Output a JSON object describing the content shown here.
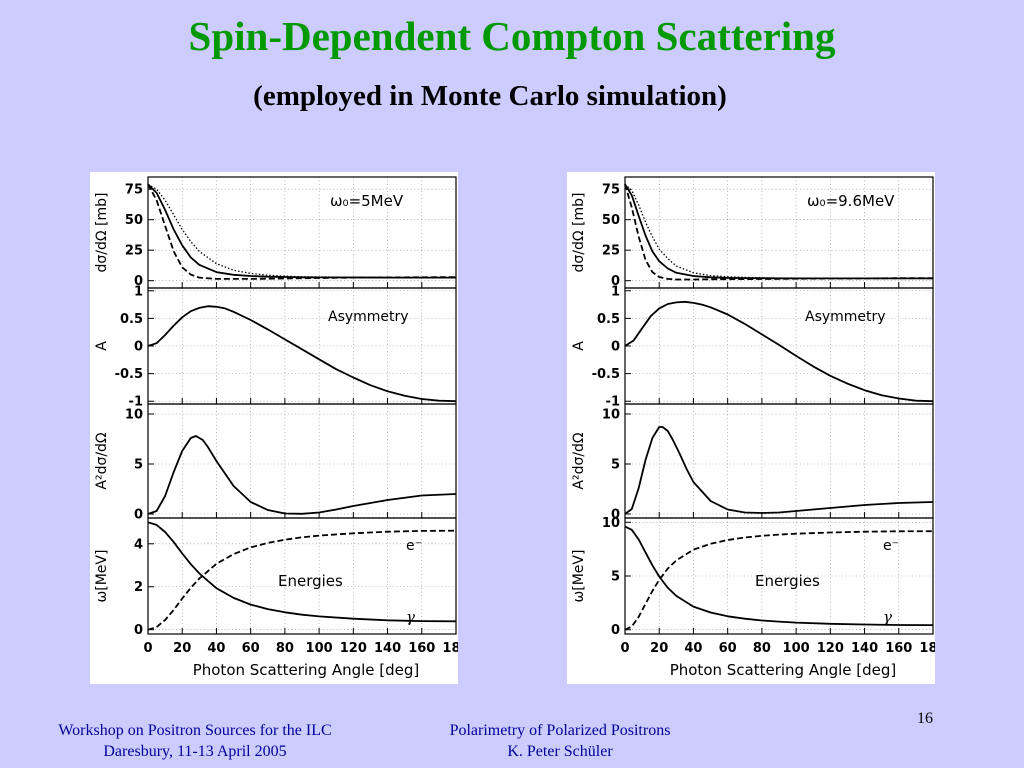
{
  "slide": {
    "title": "Spin-Dependent Compton Scattering",
    "subtitle": "(employed in Monte Carlo simulation)",
    "page_number": "16",
    "footer_left": [
      "Workshop on Positron Sources for the ILC",
      "Daresbury, 11-13 April 2005"
    ],
    "footer_center": [
      "Polarimetry of Polarized Positrons",
      "K. Peter Schüler"
    ]
  },
  "chart_data": [
    {
      "type": "line",
      "energy_label": "ω₀=5MeV",
      "xlabel": "Photon Scattering Angle [deg]",
      "xlim": [
        0,
        180
      ],
      "xticks": [
        "0",
        "20",
        "40",
        "60",
        "80",
        "100",
        "120",
        "140",
        "160",
        "180"
      ],
      "subplots": [
        {
          "ylabel": "dσ/dΩ [mb]",
          "ylim": [
            -6,
            85
          ],
          "yticks": [
            0,
            25,
            50,
            75
          ],
          "annotation": "",
          "series": [
            {
              "style": "dotted",
              "x": [
                0,
                5,
                10,
                15,
                20,
                25,
                30,
                40,
                50,
                60,
                70,
                80,
                90,
                100,
                120,
                140,
                160,
                180
              ],
              "values": [
                79,
                75,
                66,
                54,
                42,
                32,
                24,
                14,
                8.5,
                6,
                4.5,
                3.7,
                3.2,
                3,
                2.8,
                2.7,
                2.6,
                2.6
              ]
            },
            {
              "style": "solid",
              "x": [
                0,
                5,
                10,
                15,
                20,
                25,
                30,
                40,
                50,
                60,
                70,
                80,
                90,
                100,
                120,
                140,
                160,
                180
              ],
              "values": [
                79,
                72,
                58,
                42,
                29,
                19,
                13,
                7,
                4.8,
                3.8,
                3.3,
                3,
                2.8,
                2.7,
                2.6,
                2.5,
                2.5,
                2.5
              ]
            },
            {
              "style": "dashed",
              "x": [
                0,
                5,
                10,
                15,
                20,
                25,
                30,
                40,
                50,
                60,
                70,
                80,
                90,
                100,
                120,
                140,
                160,
                180
              ],
              "values": [
                79,
                66,
                45,
                24,
                11,
                5,
                2.5,
                1.5,
                1.5,
                1.5,
                1.6,
                1.8,
                2,
                2.2,
                2.5,
                2.7,
                2.8,
                2.9
              ]
            }
          ]
        },
        {
          "ylabel": "A",
          "ylim": [
            -1.05,
            1.05
          ],
          "yticks": [
            -1,
            -0.5,
            0,
            0.5,
            1
          ],
          "annotation": "Asymmetry",
          "series": [
            {
              "style": "solid",
              "x": [
                0,
                5,
                10,
                15,
                20,
                25,
                30,
                35,
                40,
                45,
                50,
                60,
                70,
                80,
                90,
                100,
                110,
                120,
                130,
                140,
                150,
                160,
                170,
                180
              ],
              "values": [
                0,
                0.05,
                0.2,
                0.37,
                0.52,
                0.63,
                0.69,
                0.72,
                0.71,
                0.68,
                0.62,
                0.47,
                0.3,
                0.12,
                -0.06,
                -0.24,
                -0.42,
                -0.57,
                -0.71,
                -0.82,
                -0.9,
                -0.96,
                -0.99,
                -1
              ]
            }
          ]
        },
        {
          "ylabel": "A²dσ/dΩ",
          "ylim": [
            -0.4,
            11
          ],
          "yticks": [
            0,
            5,
            10
          ],
          "annotation": "",
          "series": [
            {
              "style": "solid",
              "x": [
                0,
                5,
                10,
                15,
                20,
                25,
                28,
                32,
                35,
                40,
                50,
                60,
                70,
                80,
                90,
                100,
                110,
                120,
                140,
                160,
                180
              ],
              "values": [
                0,
                0.3,
                1.8,
                4.2,
                6.3,
                7.6,
                7.8,
                7.4,
                6.7,
                5.3,
                2.8,
                1.2,
                0.4,
                0.05,
                0.02,
                0.15,
                0.45,
                0.8,
                1.4,
                1.85,
                2
              ]
            }
          ]
        },
        {
          "ylabel": "ω[MeV]",
          "ylim": [
            -0.2,
            5.2
          ],
          "yticks": [
            0,
            2,
            4
          ],
          "annotation": "Energies",
          "electron_label": "e⁻",
          "photon_label": "γ",
          "series": [
            {
              "style": "solid",
              "x": [
                0,
                5,
                10,
                15,
                20,
                25,
                30,
                40,
                50,
                60,
                70,
                80,
                90,
                100,
                120,
                140,
                160,
                180
              ],
              "values": [
                5,
                4.88,
                4.55,
                4.08,
                3.55,
                3.05,
                2.62,
                1.93,
                1.48,
                1.17,
                0.96,
                0.81,
                0.7,
                0.62,
                0.51,
                0.44,
                0.4,
                0.39
              ]
            },
            {
              "style": "dashed",
              "x": [
                0,
                5,
                10,
                15,
                20,
                25,
                30,
                40,
                50,
                60,
                70,
                80,
                90,
                100,
                120,
                140,
                160,
                180
              ],
              "values": [
                0,
                0.12,
                0.45,
                0.92,
                1.45,
                1.95,
                2.38,
                3.07,
                3.52,
                3.83,
                4.04,
                4.19,
                4.3,
                4.38,
                4.49,
                4.56,
                4.6,
                4.61
              ]
            }
          ]
        }
      ]
    },
    {
      "type": "line",
      "energy_label": "ω₀=9.6MeV",
      "xlabel": "Photon Scattering Angle [deg]",
      "xlim": [
        0,
        180
      ],
      "xticks": [
        "0",
        "20",
        "40",
        "60",
        "80",
        "100",
        "120",
        "140",
        "160",
        "180"
      ],
      "subplots": [
        {
          "ylabel": "dσ/dΩ [mb]",
          "ylim": [
            -6,
            85
          ],
          "yticks": [
            0,
            25,
            50,
            75
          ],
          "annotation": "",
          "series": [
            {
              "style": "dotted",
              "x": [
                0,
                4,
                8,
                12,
                16,
                20,
                25,
                30,
                40,
                50,
                60,
                70,
                80,
                90,
                100,
                120,
                140,
                160,
                180
              ],
              "values": [
                79,
                74,
                62,
                48,
                36,
                26,
                18,
                12,
                6.5,
                4.2,
                3.2,
                2.7,
                2.4,
                2.2,
                2.1,
                2,
                2,
                2,
                2
              ]
            },
            {
              "style": "solid",
              "x": [
                0,
                4,
                8,
                12,
                16,
                20,
                25,
                30,
                40,
                50,
                60,
                70,
                80,
                90,
                100,
                120,
                140,
                160,
                180
              ],
              "values": [
                79,
                70,
                53,
                37,
                24,
                16,
                10,
                6.5,
                3.8,
                2.8,
                2.3,
                2.1,
                2,
                1.9,
                1.9,
                1.9,
                1.9,
                1.9,
                1.9
              ]
            },
            {
              "style": "dashed",
              "x": [
                0,
                4,
                8,
                12,
                16,
                20,
                25,
                30,
                40,
                50,
                60,
                70,
                80,
                90,
                100,
                120,
                140,
                160,
                180
              ],
              "values": [
                79,
                60,
                36,
                17,
                7,
                3,
                1.5,
                1,
                1,
                1.1,
                1.2,
                1.3,
                1.4,
                1.5,
                1.6,
                1.8,
                1.9,
                2,
                2
              ]
            }
          ]
        },
        {
          "ylabel": "A",
          "ylim": [
            -1.05,
            1.05
          ],
          "yticks": [
            -1,
            -0.5,
            0,
            0.5,
            1
          ],
          "annotation": "Asymmetry",
          "series": [
            {
              "style": "solid",
              "x": [
                0,
                5,
                10,
                15,
                20,
                25,
                30,
                35,
                40,
                45,
                50,
                60,
                70,
                80,
                90,
                100,
                110,
                120,
                130,
                140,
                150,
                160,
                170,
                180
              ],
              "values": [
                0,
                0.1,
                0.32,
                0.54,
                0.68,
                0.76,
                0.79,
                0.8,
                0.78,
                0.75,
                0.7,
                0.57,
                0.4,
                0.21,
                0.02,
                -0.18,
                -0.37,
                -0.54,
                -0.68,
                -0.8,
                -0.89,
                -0.95,
                -0.99,
                -1
              ]
            }
          ]
        },
        {
          "ylabel": "A²dσ/dΩ",
          "ylim": [
            -0.4,
            11
          ],
          "yticks": [
            0,
            5,
            10
          ],
          "annotation": "",
          "series": [
            {
              "style": "solid",
              "x": [
                0,
                4,
                8,
                12,
                16,
                20,
                22,
                25,
                28,
                32,
                36,
                40,
                50,
                60,
                70,
                80,
                90,
                100,
                120,
                140,
                160,
                180
              ],
              "values": [
                0,
                0.5,
                2.6,
                5.4,
                7.6,
                8.7,
                8.7,
                8.3,
                7.4,
                6,
                4.5,
                3.2,
                1.3,
                0.45,
                0.15,
                0.1,
                0.15,
                0.3,
                0.6,
                0.9,
                1.1,
                1.2
              ]
            }
          ]
        },
        {
          "ylabel": "ω[MeV]",
          "ylim": [
            -0.4,
            10.4
          ],
          "yticks": [
            0,
            5,
            10
          ],
          "annotation": "Energies",
          "electron_label": "e⁻",
          "photon_label": "γ",
          "series": [
            {
              "style": "solid",
              "x": [
                0,
                4,
                8,
                12,
                16,
                20,
                25,
                30,
                40,
                50,
                60,
                70,
                80,
                90,
                100,
                120,
                140,
                160,
                180
              ],
              "values": [
                9.6,
                9.3,
                8.4,
                7.2,
                6,
                4.95,
                3.9,
                3.15,
                2.15,
                1.6,
                1.25,
                1.02,
                0.86,
                0.75,
                0.66,
                0.55,
                0.48,
                0.44,
                0.43
              ]
            },
            {
              "style": "dashed",
              "x": [
                0,
                4,
                8,
                12,
                16,
                20,
                25,
                30,
                40,
                50,
                60,
                70,
                80,
                90,
                100,
                120,
                140,
                160,
                180
              ],
              "values": [
                0,
                0.3,
                1.2,
                2.4,
                3.6,
                4.65,
                5.7,
                6.45,
                7.45,
                8,
                8.35,
                8.58,
                8.74,
                8.85,
                8.94,
                9.05,
                9.12,
                9.16,
                9.17
              ]
            }
          ]
        }
      ]
    }
  ]
}
